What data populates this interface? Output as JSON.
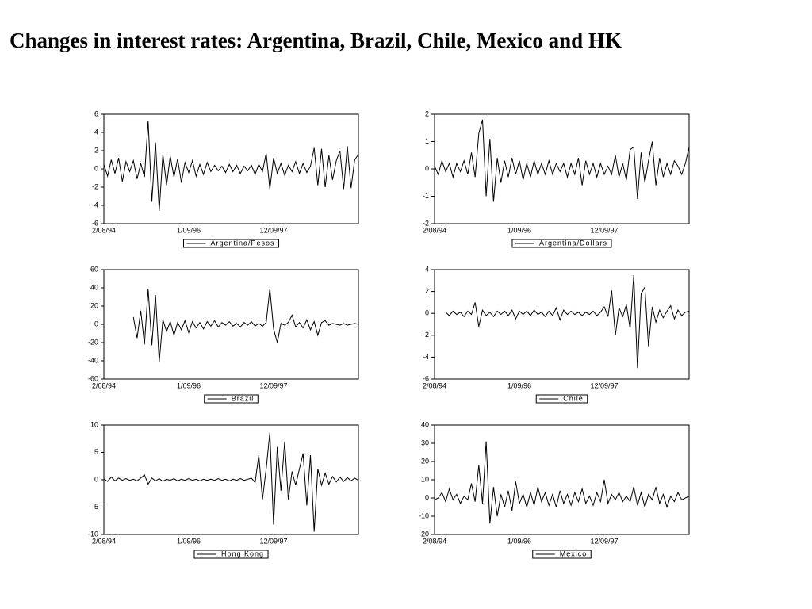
{
  "title": "Changes in interest rates: Argentina, Brazil, Chile, Mexico and HK",
  "chart_data": [
    {
      "type": "line",
      "legend": "bottom",
      "categories": [
        "2/08/94",
        null,
        null,
        null,
        null,
        null,
        null,
        null,
        null,
        null,
        null,
        null,
        null,
        null,
        null,
        null,
        null,
        null,
        null,
        null,
        null,
        null,
        null,
        "1/09/96",
        null,
        null,
        null,
        null,
        null,
        null,
        null,
        null,
        null,
        null,
        null,
        null,
        null,
        null,
        null,
        null,
        null,
        null,
        null,
        null,
        null,
        null,
        "12/09/97",
        null,
        null,
        null,
        null,
        null,
        null,
        null,
        null,
        null,
        null,
        null,
        null,
        null,
        null,
        null,
        null,
        null,
        null,
        null,
        null,
        null,
        null,
        null
      ],
      "ylim": [
        -6,
        6
      ],
      "yticks": [
        -6,
        -4,
        -2,
        0,
        2,
        4,
        6
      ],
      "series": [
        {
          "name": "Argentina/Pesos",
          "color": "#000000",
          "values": [
            0.5,
            -0.8,
            1.0,
            -0.5,
            1.2,
            -1.4,
            0.8,
            -0.3,
            0.9,
            -1.1,
            0.6,
            -0.9,
            5.3,
            -3.6,
            2.9,
            -4.6,
            1.6,
            -1.8,
            1.4,
            -0.9,
            1.1,
            -1.5,
            0.7,
            -0.4,
            0.9,
            -0.8,
            0.5,
            -0.6,
            0.7,
            -0.3,
            0.4,
            -0.2,
            0.3,
            -0.4,
            0.5,
            -0.3,
            0.4,
            -0.5,
            0.3,
            -0.2,
            0.4,
            -0.6,
            0.5,
            -0.3,
            1.7,
            -2.2,
            1.2,
            -0.5,
            0.6,
            -0.7,
            0.4,
            -0.3,
            0.8,
            -0.5,
            0.6,
            -0.4,
            0.3,
            2.3,
            -1.8,
            2.2,
            -2.0,
            1.5,
            -1.2,
            0.9,
            2.0,
            -2.2,
            2.5,
            -2.1,
            1.0,
            1.6
          ]
        }
      ]
    },
    {
      "type": "line",
      "legend": "bottom",
      "categories": [
        "2/08/94",
        null,
        null,
        null,
        null,
        null,
        null,
        null,
        null,
        null,
        null,
        null,
        null,
        null,
        null,
        null,
        null,
        null,
        null,
        null,
        null,
        null,
        null,
        "1/09/96",
        null,
        null,
        null,
        null,
        null,
        null,
        null,
        null,
        null,
        null,
        null,
        null,
        null,
        null,
        null,
        null,
        null,
        null,
        null,
        null,
        null,
        null,
        "12/09/97",
        null,
        null,
        null,
        null,
        null,
        null,
        null,
        null,
        null,
        null,
        null,
        null,
        null,
        null,
        null,
        null,
        null,
        null,
        null,
        null,
        null,
        null,
        null
      ],
      "ylim": [
        -2,
        2
      ],
      "yticks": [
        -2,
        -1,
        0,
        1,
        2
      ],
      "series": [
        {
          "name": "Argentina/Dollars",
          "color": "#000000",
          "values": [
            0.1,
            -0.2,
            0.3,
            -0.1,
            0.2,
            -0.3,
            0.2,
            -0.1,
            0.3,
            -0.2,
            0.6,
            -0.3,
            1.3,
            1.8,
            -1.0,
            1.1,
            -1.2,
            0.4,
            -0.5,
            0.3,
            -0.3,
            0.4,
            -0.2,
            0.3,
            -0.4,
            0.2,
            -0.3,
            0.3,
            -0.2,
            0.2,
            -0.2,
            0.3,
            -0.2,
            0.2,
            -0.1,
            0.2,
            -0.3,
            0.2,
            -0.2,
            0.4,
            -0.6,
            0.3,
            -0.2,
            0.2,
            -0.3,
            0.2,
            -0.2,
            0.1,
            -0.2,
            0.5,
            -0.3,
            0.2,
            -0.4,
            0.7,
            0.8,
            -1.1,
            0.6,
            -0.5,
            0.3,
            1.0,
            -0.6,
            0.4,
            -0.3,
            0.2,
            -0.2,
            0.3,
            0.1,
            -0.2,
            0.2,
            0.8
          ]
        }
      ]
    },
    {
      "type": "line",
      "legend": "bottom",
      "categories": [
        "2/08/94",
        null,
        null,
        null,
        null,
        null,
        null,
        null,
        null,
        null,
        null,
        null,
        null,
        null,
        null,
        null,
        null,
        null,
        null,
        null,
        null,
        null,
        null,
        "1/09/96",
        null,
        null,
        null,
        null,
        null,
        null,
        null,
        null,
        null,
        null,
        null,
        null,
        null,
        null,
        null,
        null,
        null,
        null,
        null,
        null,
        null,
        null,
        "12/09/97",
        null,
        null,
        null,
        null,
        null,
        null,
        null,
        null,
        null,
        null,
        null,
        null,
        null,
        null,
        null,
        null,
        null,
        null,
        null,
        null,
        null,
        null,
        null
      ],
      "ylim": [
        -60,
        60
      ],
      "yticks": [
        -60,
        -40,
        -20,
        0,
        20,
        40,
        60
      ],
      "series": [
        {
          "name": "Brazil",
          "color": "#000000",
          "values": [
            null,
            null,
            null,
            null,
            null,
            null,
            null,
            null,
            8,
            -15,
            15,
            -22,
            39,
            -23,
            32,
            -41,
            5,
            -8,
            3,
            -12,
            2,
            -6,
            4,
            -9,
            3,
            -4,
            2,
            -5,
            3,
            -2,
            4,
            -3,
            2,
            -1,
            3,
            -2,
            1,
            -3,
            2,
            -1,
            3,
            -2,
            1,
            -2,
            2,
            39,
            -5,
            -20,
            1,
            -1,
            2,
            10,
            -3,
            2,
            -4,
            5,
            -6,
            3,
            -12,
            2,
            4,
            -1,
            1,
            0,
            -1,
            1,
            -1,
            0,
            1,
            0
          ]
        }
      ]
    },
    {
      "type": "line",
      "legend": "bottom",
      "categories": [
        "2/08/94",
        null,
        null,
        null,
        null,
        null,
        null,
        null,
        null,
        null,
        null,
        null,
        null,
        null,
        null,
        null,
        null,
        null,
        null,
        null,
        null,
        null,
        null,
        "1/09/96",
        null,
        null,
        null,
        null,
        null,
        null,
        null,
        null,
        null,
        null,
        null,
        null,
        null,
        null,
        null,
        null,
        null,
        null,
        null,
        null,
        null,
        null,
        "12/09/97",
        null,
        null,
        null,
        null,
        null,
        null,
        null,
        null,
        null,
        null,
        null,
        null,
        null,
        null,
        null,
        null,
        null,
        null,
        null,
        null,
        null,
        null,
        null
      ],
      "ylim": [
        -6,
        4
      ],
      "yticks": [
        -6,
        -4,
        -2,
        0,
        2,
        4
      ],
      "series": [
        {
          "name": "Chile",
          "color": "#000000",
          "values": [
            null,
            null,
            null,
            0.1,
            -0.2,
            0.2,
            -0.1,
            0.1,
            -0.3,
            0.2,
            -0.1,
            1.0,
            -1.2,
            0.3,
            -0.2,
            0.1,
            -0.3,
            0.2,
            -0.1,
            0.2,
            -0.2,
            0.3,
            -0.5,
            0.2,
            -0.1,
            0.2,
            -0.2,
            0.3,
            -0.1,
            0.1,
            -0.3,
            0.2,
            -0.2,
            0.5,
            -0.6,
            0.3,
            -0.1,
            0.2,
            -0.1,
            0.1,
            -0.2,
            0.1,
            -0.1,
            0.2,
            -0.2,
            0.1,
            0.6,
            -0.3,
            2.1,
            -2.0,
            0.5,
            -0.3,
            0.8,
            -1.4,
            3.5,
            -5.0,
            1.8,
            2.4,
            -3.0,
            0.6,
            -0.8,
            0.3,
            -0.4,
            0.2,
            0.7,
            -0.5,
            0.3,
            -0.2,
            0.1,
            0.2
          ]
        }
      ]
    },
    {
      "type": "line",
      "legend": "bottom",
      "categories": [
        "2/08/94",
        null,
        null,
        null,
        null,
        null,
        null,
        null,
        null,
        null,
        null,
        null,
        null,
        null,
        null,
        null,
        null,
        null,
        null,
        null,
        null,
        null,
        null,
        "1/09/96",
        null,
        null,
        null,
        null,
        null,
        null,
        null,
        null,
        null,
        null,
        null,
        null,
        null,
        null,
        null,
        null,
        null,
        null,
        null,
        null,
        null,
        null,
        "12/09/97",
        null,
        null,
        null,
        null,
        null,
        null,
        null,
        null,
        null,
        null,
        null,
        null,
        null,
        null,
        null,
        null,
        null,
        null,
        null,
        null,
        null,
        null,
        null
      ],
      "ylim": [
        -10,
        10
      ],
      "yticks": [
        -10,
        -5,
        0,
        5,
        10
      ],
      "series": [
        {
          "name": "Hong Kong",
          "color": "#000000",
          "values": [
            0.2,
            -0.3,
            0.5,
            -0.2,
            0.3,
            -0.1,
            0.2,
            -0.1,
            0.1,
            -0.2,
            0.3,
            0.9,
            -0.8,
            0.3,
            -0.2,
            0.2,
            -0.3,
            0.1,
            -0.1,
            0.2,
            -0.2,
            0.1,
            -0.1,
            0.2,
            -0.1,
            0.1,
            -0.2,
            0.1,
            -0.1,
            0.1,
            -0.1,
            0.2,
            -0.1,
            0.1,
            -0.2,
            0.1,
            -0.1,
            0.2,
            -0.1,
            0.1,
            0.3,
            -0.5,
            4.5,
            -3.6,
            2.0,
            8.6,
            -8.2,
            6.0,
            -2.0,
            7.0,
            -3.6,
            1.5,
            -1.0,
            2.0,
            4.8,
            -4.7,
            4.5,
            -9.5,
            2.0,
            -1.0,
            1.2,
            -0.8,
            0.6,
            -0.4,
            0.5,
            -0.3,
            0.4,
            -0.2,
            0.3,
            -0.1
          ]
        }
      ]
    },
    {
      "type": "line",
      "legend": "bottom",
      "categories": [
        "2/08/94",
        null,
        null,
        null,
        null,
        null,
        null,
        null,
        null,
        null,
        null,
        null,
        null,
        null,
        null,
        null,
        null,
        null,
        null,
        null,
        null,
        null,
        null,
        "1/09/96",
        null,
        null,
        null,
        null,
        null,
        null,
        null,
        null,
        null,
        null,
        null,
        null,
        null,
        null,
        null,
        null,
        null,
        null,
        null,
        null,
        null,
        null,
        "12/09/97",
        null,
        null,
        null,
        null,
        null,
        null,
        null,
        null,
        null,
        null,
        null,
        null,
        null,
        null,
        null,
        null,
        null,
        null,
        null,
        null,
        null,
        null,
        null
      ],
      "ylim": [
        -20,
        40
      ],
      "yticks": [
        -20,
        -10,
        0,
        10,
        20,
        30,
        40
      ],
      "series": [
        {
          "name": "Mexico",
          "color": "#000000",
          "values": [
            -1,
            0,
            3,
            -2,
            5,
            -1,
            2,
            -3,
            1,
            -1,
            8,
            -2,
            18,
            -3,
            31,
            -14,
            6,
            -10,
            2,
            -5,
            4,
            -7,
            9,
            -3,
            2,
            -5,
            3,
            -4,
            6,
            -2,
            3,
            -4,
            2,
            -5,
            4,
            -3,
            2,
            -4,
            3,
            -2,
            5,
            -3,
            1,
            -4,
            3,
            -2,
            10,
            -3,
            2,
            -1,
            3,
            -2,
            1,
            -2,
            6,
            -4,
            3,
            -5,
            2,
            -1,
            6,
            -3,
            2,
            -5,
            1,
            -2,
            3,
            -1,
            0,
            1
          ]
        }
      ]
    }
  ]
}
